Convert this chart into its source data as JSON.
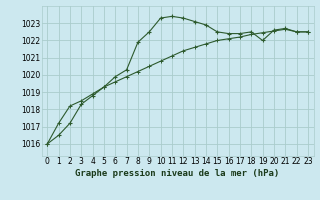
{
  "title": "Graphe pression niveau de la mer (hPa)",
  "background_color": "#cce8ef",
  "grid_color": "#aacccc",
  "line_color": "#2d5a2d",
  "x_ticks": [
    0,
    1,
    2,
    3,
    4,
    5,
    6,
    7,
    8,
    9,
    10,
    11,
    12,
    13,
    14,
    15,
    16,
    17,
    18,
    19,
    20,
    21,
    22,
    23
  ],
  "ylim": [
    1015.3,
    1024.0
  ],
  "yticks": [
    1016,
    1017,
    1018,
    1019,
    1020,
    1021,
    1022,
    1023
  ],
  "series1_x": [
    0,
    1,
    2,
    3,
    4,
    5,
    6,
    7,
    8,
    9,
    10,
    11,
    12,
    13,
    14,
    15,
    16,
    17,
    18,
    19,
    20,
    21,
    22,
    23
  ],
  "series1_y": [
    1016.0,
    1016.5,
    1017.2,
    1018.3,
    1018.8,
    1019.3,
    1019.9,
    1020.3,
    1021.9,
    1022.5,
    1023.3,
    1023.4,
    1023.3,
    1023.1,
    1022.9,
    1022.5,
    1022.4,
    1022.4,
    1022.5,
    1022.0,
    1022.6,
    1022.7,
    1022.5,
    1022.5
  ],
  "series2_x": [
    0,
    1,
    2,
    3,
    4,
    5,
    6,
    7,
    8,
    9,
    10,
    11,
    12,
    13,
    14,
    15,
    16,
    17,
    18,
    19,
    20,
    21,
    22,
    23
  ],
  "series2_y": [
    1016.0,
    1017.2,
    1018.2,
    1018.5,
    1018.9,
    1019.3,
    1019.6,
    1019.9,
    1020.2,
    1020.5,
    1020.8,
    1021.1,
    1021.4,
    1021.6,
    1021.8,
    1022.0,
    1022.1,
    1022.2,
    1022.35,
    1022.45,
    1022.55,
    1022.65,
    1022.5,
    1022.5
  ],
  "title_fontsize": 6.5,
  "tick_fontsize": 5.5
}
